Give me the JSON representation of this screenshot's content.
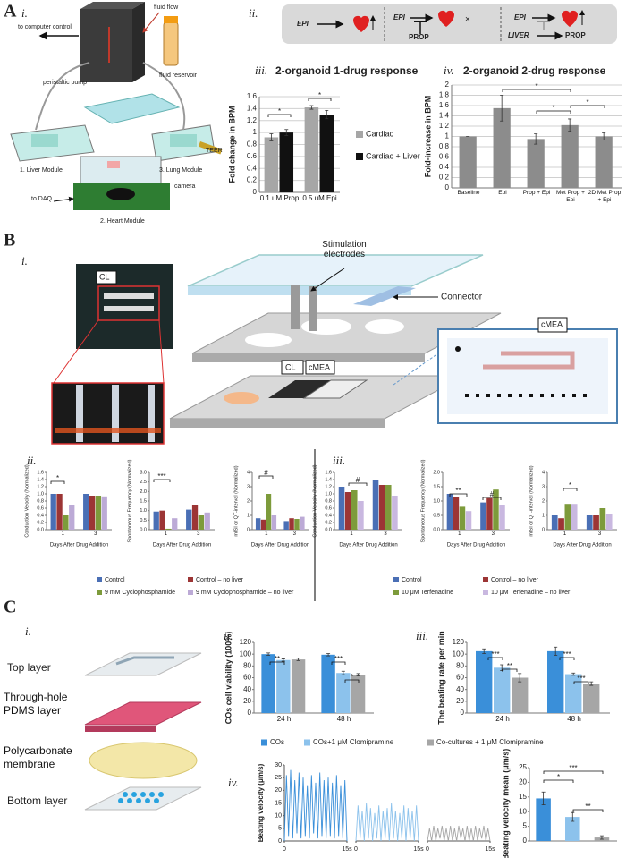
{
  "figure": {
    "A": {
      "label": "A",
      "i": {
        "label": "i.",
        "to_computer": "to computer control",
        "fluid_flow": "fluid flow",
        "pump": "peristaltic pump",
        "reservoir": "fluid reservoir",
        "liver": "1. Liver Module",
        "lung": "3. Lung Module",
        "teer": "TEER",
        "daq": "to DAQ",
        "camera": "camera",
        "heart": "2. Heart Module"
      },
      "ii": {
        "label": "ii.",
        "drug1": "EPI",
        "drug2": "EPI",
        "blocker2": "PROP",
        "drug3": "EPI",
        "liver3": "LIVER",
        "blocker3": "PROP"
      },
      "iii": {
        "label": "iii."
      },
      "iv": {
        "label": "iv."
      }
    },
    "B": {
      "label": "B",
      "i": {
        "label": "i.",
        "cl_photo": "CL",
        "electrodes": "Stimulation electrodes",
        "connector": "Connector",
        "cmea_inset": "cMEA",
        "cl_chip": "CL",
        "cmea_chip": "cMEA"
      },
      "ii": {
        "label": "ii."
      },
      "iii": {
        "label": "iii."
      }
    },
    "C": {
      "label": "C",
      "i": {
        "label": "i.",
        "top": "Top layer",
        "pdms": "Through-hole PDMS layer",
        "membrane": "Polycarbonate membrane",
        "bottom": "Bottom layer"
      },
      "ii": {
        "label": "ii."
      },
      "iii": {
        "label": "iii."
      },
      "iv": {
        "label": "iv."
      }
    }
  },
  "chart_data": [
    {
      "type": "bar",
      "title": "2-organoid 1-drug response",
      "ylabel": "Fold change in BPM",
      "grid": true,
      "categories": [
        "0.1 uM Prop",
        "0.5 uM Epi"
      ],
      "ylim": [
        0,
        1.6
      ],
      "yticks": [
        0,
        0.2,
        0.4,
        0.6,
        0.8,
        1,
        1.2,
        1.4,
        1.6
      ],
      "series": [
        {
          "name": "Cardiac",
          "color": "#a6a6a6",
          "values": [
            0.92,
            1.42
          ],
          "errors": [
            0.06,
            0.03
          ]
        },
        {
          "name": "Cardiac + Liver",
          "color": "#111111",
          "values": [
            1.0,
            1.3
          ],
          "errors": [
            0.05,
            0.07
          ]
        }
      ],
      "annotations": [
        "*",
        "*"
      ]
    },
    {
      "type": "bar",
      "title": "2-organoid 2-drug response",
      "ylabel": "Fold-increase in BPM",
      "grid": true,
      "categories": [
        "Baseline",
        "Epi",
        "Prop + Epi",
        "Met Prop + Epi",
        "2D Met Prop + Epi"
      ],
      "ylim": [
        0,
        2
      ],
      "yticks": [
        0,
        0.2,
        0.4,
        0.6,
        0.8,
        1,
        1.2,
        1.4,
        1.6,
        1.8,
        2
      ],
      "color": "#8c8c8c",
      "values": [
        1,
        1.55,
        0.95,
        1.22,
        1.0
      ],
      "errors": [
        0,
        0.25,
        0.1,
        0.12,
        0.07
      ],
      "annotations": [
        "*",
        "*",
        "*"
      ]
    },
    {
      "type": "bar",
      "ylabel": "Conduction Velocity (Normalized)",
      "xlabel": "Days After Drug Addition",
      "categories": [
        "1",
        "3"
      ],
      "ylim": [
        0,
        1.6
      ],
      "yticks": [
        {
          "value": 0,
          "label": "0.0"
        },
        0.2,
        0.4,
        0.6,
        0.8,
        {
          "value": 1,
          "label": "1.0"
        },
        1.2,
        1.4,
        1.6
      ],
      "series": [
        {
          "name": "Control",
          "color": "#4a6fb5",
          "values": [
            1.0,
            1.0
          ]
        },
        {
          "name": "Control – no liver",
          "color": "#9c3535",
          "values": [
            1.0,
            0.95
          ]
        },
        {
          "name": "9 mM Cyclophosphamide",
          "color": "#7d9b3b",
          "values": [
            0.4,
            0.95
          ]
        },
        {
          "name": "9 mM Cyclophosphamide – no liver",
          "color": "#bcaad6",
          "values": [
            0.7,
            0.93
          ]
        }
      ],
      "annotations": [
        "*"
      ]
    },
    {
      "type": "bar",
      "ylabel": "Spontaneous Frequency (Normalized)",
      "xlabel": "Days After Drug Addition",
      "categories": [
        "1",
        "3"
      ],
      "ylim": [
        0,
        3
      ],
      "yticks": [
        {
          "value": 0,
          "label": "0.0"
        },
        0.5,
        {
          "value": 1,
          "label": "1.0"
        },
        1.5,
        {
          "value": 2,
          "label": "2.0"
        },
        2.5,
        {
          "value": 3,
          "label": "3.0"
        }
      ],
      "series": [
        {
          "color": "#4a6fb5",
          "values": [
            0.95,
            1.05
          ]
        },
        {
          "color": "#9c3535",
          "values": [
            1.0,
            1.3
          ]
        },
        {
          "color": "#7d9b3b",
          "values": [
            0.05,
            0.75
          ]
        },
        {
          "color": "#bcaad6",
          "values": [
            0.6,
            0.9
          ]
        }
      ],
      "annotations": [
        "***"
      ]
    },
    {
      "type": "bar",
      "ylabel": "mISI or QT-interval (Normalized)",
      "xlabel": "Days After Drug Addition",
      "categories": [
        "1",
        "3"
      ],
      "ylim": [
        0,
        4
      ],
      "yticks": [
        0,
        1,
        2,
        3,
        4
      ],
      "series": [
        {
          "color": "#4a6fb5",
          "values": [
            0.8,
            0.6
          ]
        },
        {
          "color": "#9c3535",
          "values": [
            0.7,
            0.8
          ]
        },
        {
          "color": "#7d9b3b",
          "values": [
            2.5,
            0.75
          ]
        },
        {
          "color": "#bcaad6",
          "values": [
            1.0,
            0.9
          ]
        }
      ],
      "annotations": [
        "#"
      ]
    },
    {
      "type": "bar",
      "ylabel": "Conduction Velocity (Normalized)",
      "xlabel": "Days After Drug Addition",
      "categories": [
        "1",
        "3"
      ],
      "ylim": [
        0,
        1.6
      ],
      "yticks": [
        {
          "value": 0,
          "label": "0.0"
        },
        0.2,
        0.4,
        0.6,
        0.8,
        {
          "value": 1,
          "label": "1.0"
        },
        1.2,
        1.4,
        1.6
      ],
      "series": [
        {
          "name": "Control",
          "color": "#4a6fb5",
          "values": [
            1.2,
            1.4
          ]
        },
        {
          "name": "Control – no liver",
          "color": "#9c3535",
          "values": [
            1.05,
            1.25
          ]
        },
        {
          "name": "10 μM Terfenadine",
          "color": "#7d9b3b",
          "values": [
            1.1,
            1.25
          ]
        },
        {
          "name": "10 μM Terfenadine – no liver",
          "color": "#c9b8e0",
          "values": [
            0.8,
            0.95
          ]
        }
      ],
      "annotations": [
        "#"
      ]
    },
    {
      "type": "bar",
      "ylabel": "Spontaneous Frequency (Normalized)",
      "xlabel": "Days After Drug Addition",
      "categories": [
        "1",
        "3"
      ],
      "ylim": [
        0,
        2
      ],
      "yticks": [
        {
          "value": 0,
          "label": "0.0"
        },
        0.5,
        {
          "value": 1,
          "label": "1.0"
        },
        1.5,
        {
          "value": 2,
          "label": "2.0"
        }
      ],
      "series": [
        {
          "color": "#4a6fb5",
          "values": [
            1.25,
            0.95
          ]
        },
        {
          "color": "#9c3535",
          "values": [
            1.15,
            1.1
          ]
        },
        {
          "color": "#7d9b3b",
          "values": [
            0.8,
            1.4
          ]
        },
        {
          "color": "#c9b8e0",
          "values": [
            0.65,
            0.85
          ]
        }
      ],
      "annotations": [
        "**",
        "#"
      ]
    },
    {
      "type": "bar",
      "ylabel": "mISI or QT-interval (Normalized)",
      "xlabel": "Days After Drug Addition",
      "categories": [
        "1",
        "3"
      ],
      "ylim": [
        0,
        4
      ],
      "yticks": [
        0,
        1,
        2,
        3,
        4
      ],
      "series": [
        {
          "color": "#4a6fb5",
          "values": [
            1.0,
            1.0
          ]
        },
        {
          "color": "#9c3535",
          "values": [
            0.8,
            1.0
          ]
        },
        {
          "color": "#7d9b3b",
          "values": [
            1.8,
            1.5
          ]
        },
        {
          "color": "#c9b8e0",
          "values": [
            1.8,
            1.1
          ]
        }
      ],
      "annotations": [
        "*"
      ]
    },
    {
      "type": "bar",
      "ylabel": "COs cell viability (100%)",
      "categories": [
        "24 h",
        "48 h"
      ],
      "ylim": [
        0,
        120
      ],
      "yticks": [
        0,
        20,
        40,
        60,
        80,
        100,
        120
      ],
      "series": [
        {
          "name": "COs",
          "color": "#3a8fd9",
          "values": [
            100,
            99
          ],
          "errors": [
            2,
            2
          ]
        },
        {
          "name": "COs+1 μM Clomipramine",
          "color": "#8cc2ec",
          "values": [
            90,
            68
          ],
          "errors": [
            2,
            3
          ]
        },
        {
          "name": "Co-cultures + 1 μM Clomipramine",
          "color": "#a6a6a6",
          "values": [
            91,
            65
          ],
          "errors": [
            2,
            2
          ]
        }
      ],
      "annotations": [
        "**",
        "***",
        "*"
      ]
    },
    {
      "type": "bar",
      "ylabel": "The beating rate per min",
      "categories": [
        "24 h",
        "48 h"
      ],
      "ylim": [
        0,
        120
      ],
      "yticks": [
        0,
        20,
        40,
        60,
        80,
        100,
        120
      ],
      "series": [
        {
          "color": "#3a8fd9",
          "values": [
            105,
            105
          ],
          "errors": [
            4,
            7
          ]
        },
        {
          "color": "#8cc2ec",
          "values": [
            77,
            66
          ],
          "errors": [
            5,
            2
          ]
        },
        {
          "color": "#a6a6a6",
          "values": [
            60,
            50
          ],
          "errors": [
            7,
            3
          ]
        }
      ],
      "annotations": [
        "***",
        "**",
        "***",
        "***"
      ]
    },
    {
      "type": "trace",
      "ylabel": "Beating velocity (μm/s)",
      "xlim": [
        0,
        15
      ],
      "ylim": [
        0,
        30
      ],
      "yticks": [
        0,
        5,
        10,
        15,
        20,
        25,
        30
      ],
      "xticks": [
        0,
        {
          "value": 15,
          "label": "15s"
        }
      ],
      "x": [
        0,
        0.5,
        1,
        1.5,
        2,
        2.5,
        3,
        3.5,
        4,
        4.5,
        5,
        5.5,
        6,
        6.5,
        7,
        7.5,
        8,
        8.5,
        9,
        9.5,
        10,
        10.5,
        11,
        11.5,
        12,
        12.5,
        13,
        13.5,
        14,
        14.5,
        15
      ],
      "series": [
        {
          "color": "#3a8fd9",
          "values": [
            0,
            26,
            2,
            28,
            1,
            24,
            3,
            27,
            1,
            25,
            2,
            22,
            1,
            26,
            3,
            23,
            1,
            27,
            2,
            24,
            1,
            25,
            2,
            23,
            1,
            26,
            2,
            22,
            1,
            24,
            0
          ]
        },
        {
          "color": "#8cc2ec",
          "values": [
            0,
            14,
            1,
            12,
            0,
            15,
            1,
            13,
            0,
            11,
            1,
            14,
            0,
            12,
            1,
            13,
            0,
            15,
            1,
            12,
            0,
            11,
            1,
            14,
            0,
            13,
            1,
            12,
            0,
            14,
            0
          ]
        },
        {
          "color": "#a6a6a6",
          "values": [
            0,
            5,
            0,
            6,
            0,
            5,
            1,
            6,
            0,
            5,
            0,
            6,
            0,
            5,
            0,
            6,
            1,
            5,
            0,
            6,
            0,
            5,
            0,
            6,
            0,
            5,
            1,
            6,
            0,
            5,
            0
          ]
        }
      ]
    },
    {
      "type": "bar",
      "ylabel": "Beating velocity mean (μm/s)",
      "ylim": [
        0,
        25
      ],
      "yticks": [
        0,
        5,
        10,
        15,
        20,
        25
      ],
      "values": [
        14.5,
        8.2,
        1.2
      ],
      "errors": [
        2.2,
        1.5,
        0.6
      ],
      "colors": [
        "#3a8fd9",
        "#8cc2ec",
        "#a6a6a6"
      ],
      "annotations": [
        "***",
        "*",
        "**"
      ]
    }
  ]
}
